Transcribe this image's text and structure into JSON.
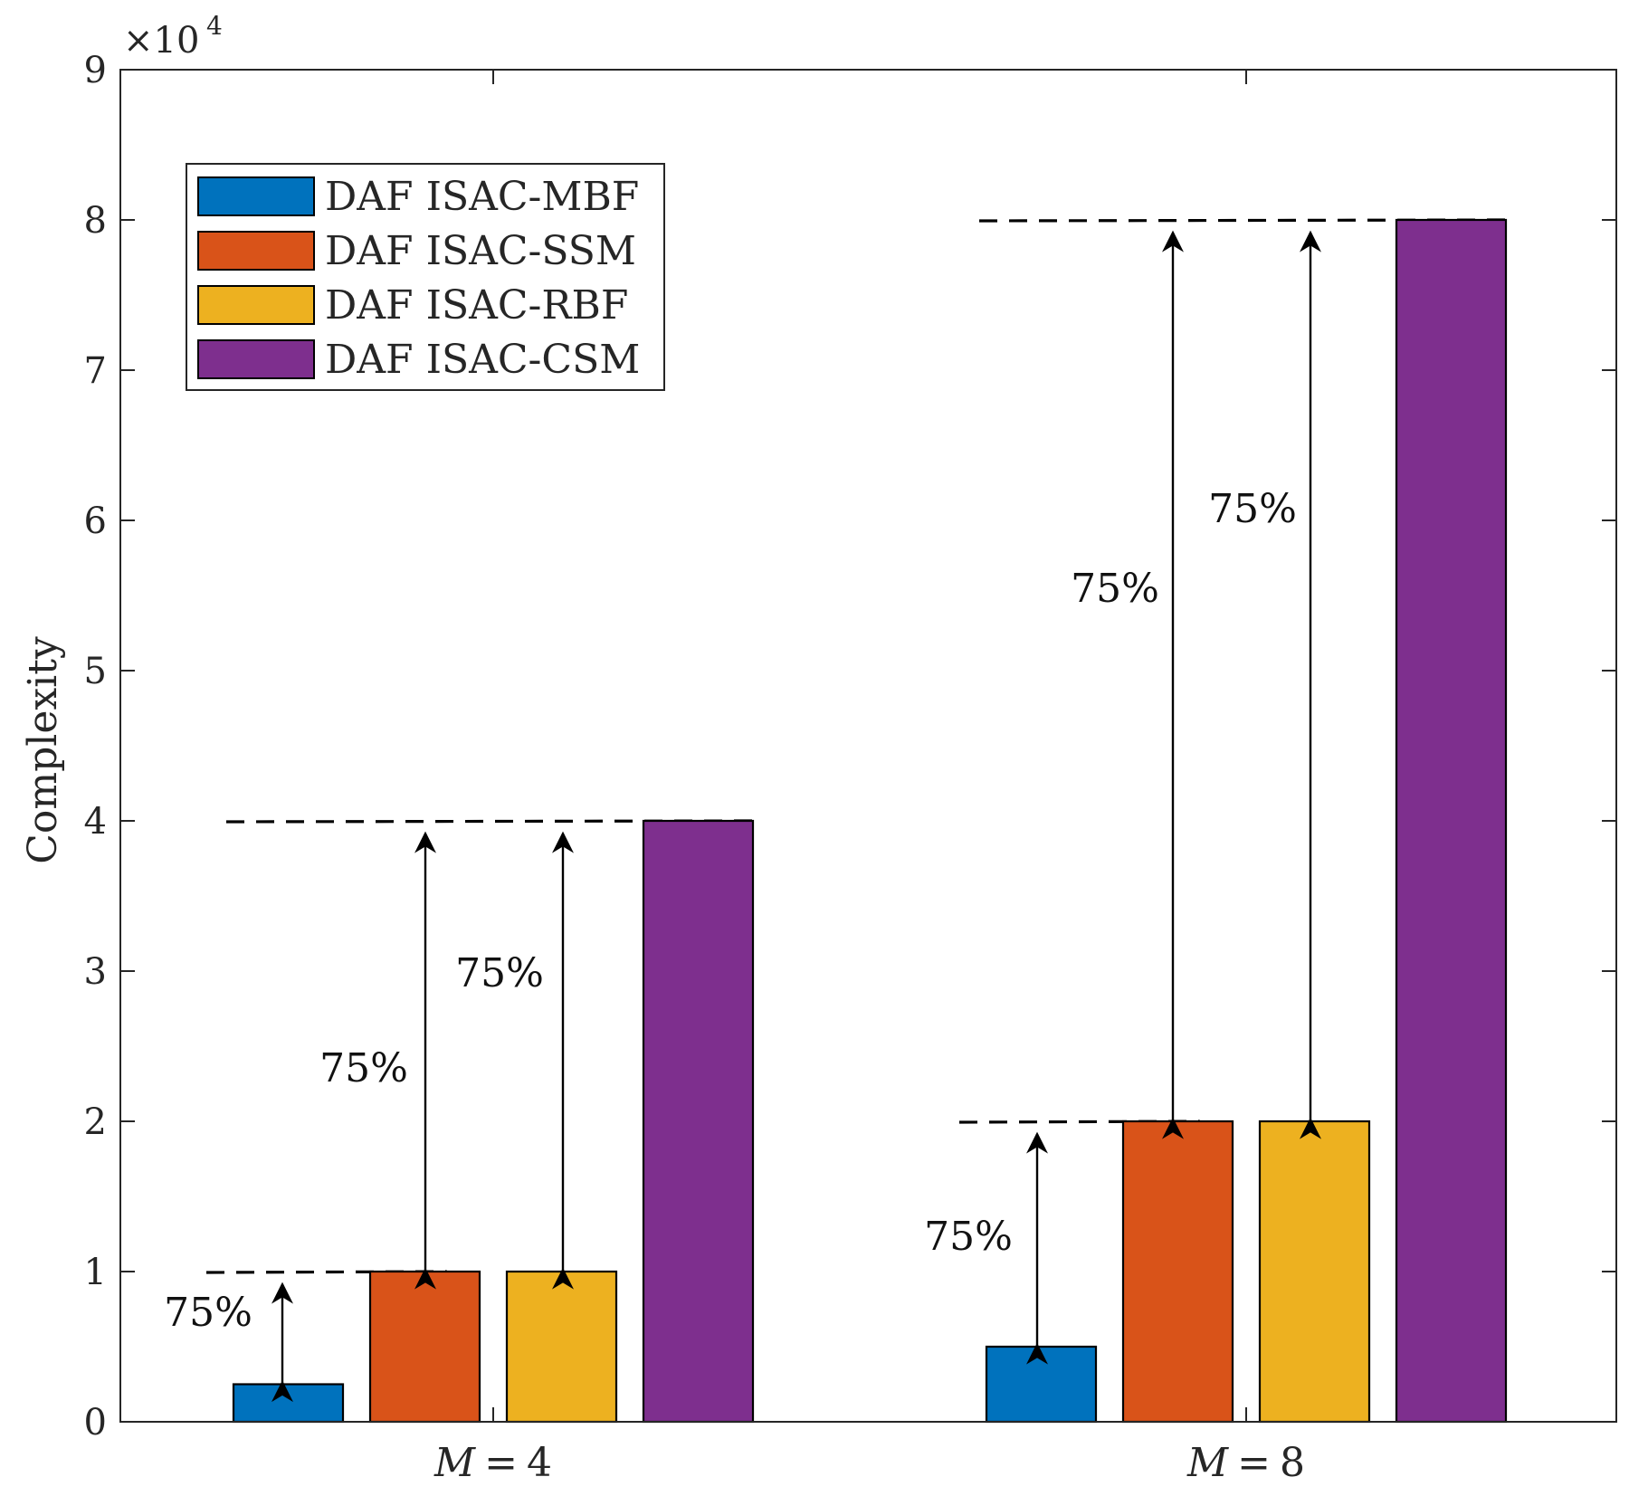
{
  "chart_data": {
    "type": "bar",
    "title": "",
    "categories": [
      "M = 4",
      "M = 8"
    ],
    "category_parts": [
      {
        "var": "M",
        "op": "=",
        "num": "4"
      },
      {
        "var": "M",
        "op": "=",
        "num": "8"
      }
    ],
    "series": [
      {
        "name": "DAF ISAC-MBF",
        "color": "#0072BD",
        "values": [
          2500,
          5000
        ]
      },
      {
        "name": "DAF ISAC-SSM",
        "color": "#D95319",
        "values": [
          10000,
          20000
        ]
      },
      {
        "name": "DAF ISAC-RBF",
        "color": "#EDB120",
        "values": [
          10000,
          20000
        ]
      },
      {
        "name": "DAF ISAC-CSM",
        "color": "#7E2F8E",
        "values": [
          40000,
          80000
        ]
      }
    ],
    "xlabel": "",
    "ylabel": "Complexity",
    "ylim": [
      0,
      90000
    ],
    "yticks": [
      0,
      10000,
      20000,
      30000,
      40000,
      50000,
      60000,
      70000,
      80000,
      90000
    ],
    "ytick_labels": [
      "0",
      "1",
      "2",
      "3",
      "4",
      "5",
      "6",
      "7",
      "8",
      "9"
    ],
    "y_exponent_label": "×10",
    "y_exponent_power": "4",
    "grid": false,
    "legend_position": "top-left",
    "annotations": [
      {
        "text": "75%",
        "category": 0,
        "from_series": 0,
        "to_series": 1
      },
      {
        "text": "75%",
        "category": 0,
        "from_series": 1,
        "to_series": 3
      },
      {
        "text": "75%",
        "category": 0,
        "from_series": 2,
        "to_series": 3
      },
      {
        "text": "75%",
        "category": 1,
        "from_series": 0,
        "to_series": 1
      },
      {
        "text": "75%",
        "category": 1,
        "from_series": 1,
        "to_series": 3
      },
      {
        "text": "75%",
        "category": 1,
        "from_series": 2,
        "to_series": 3
      }
    ]
  }
}
